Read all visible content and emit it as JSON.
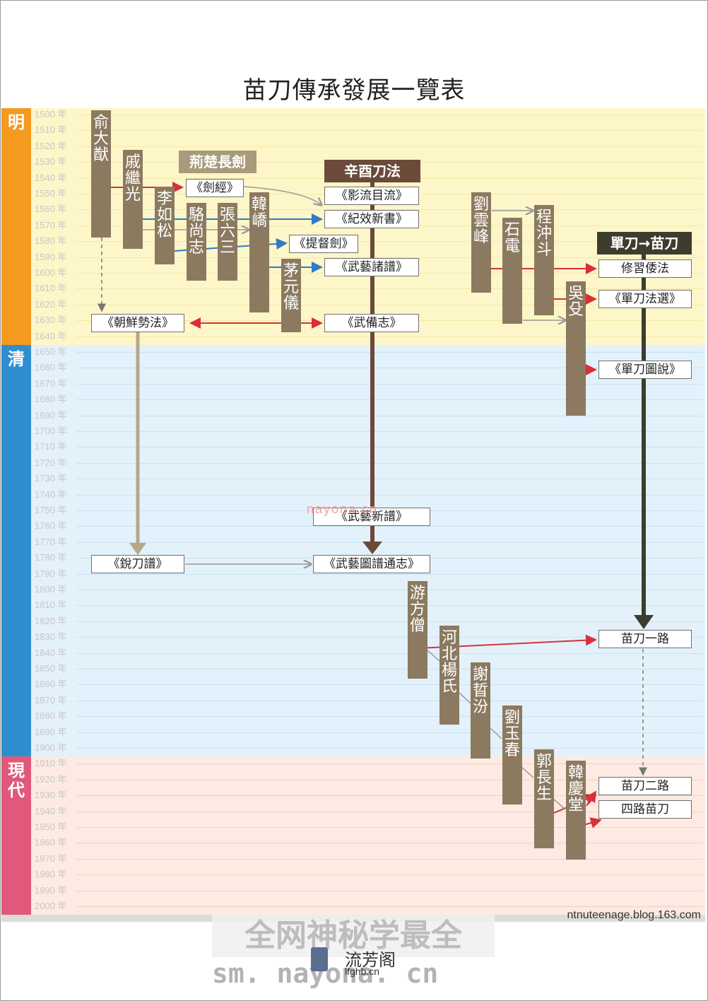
{
  "title": "苗刀傳承發展一覽表",
  "eras": [
    {
      "label": "明",
      "color": "#f39a1f",
      "band": "#fdf6c8"
    },
    {
      "label": "清",
      "color": "#2e8fd0",
      "band": "#e3f1fb"
    },
    {
      "label": "現代",
      "color": "#e2587a",
      "band": "#fdeae2"
    }
  ],
  "years": [
    "1500 年",
    "1510 年",
    "1520 年",
    "1530 年",
    "1540 年",
    "1550 年",
    "1560 年",
    "1570 年",
    "1580 年",
    "1590 年",
    "1600 年",
    "1610 年",
    "1620 年",
    "1630 年",
    "1640 年",
    "1650 年",
    "1660 年",
    "1670 年",
    "1680 年",
    "1690 年",
    "1700 年",
    "1710 年",
    "1720 年",
    "1730 年",
    "1740 年",
    "1750 年",
    "1760 年",
    "1770 年",
    "1780 年",
    "1790 年",
    "1800 年",
    "1810 年",
    "1820 年",
    "1830 年",
    "1840 年",
    "1850 年",
    "1860 年",
    "1870 年",
    "1880 年",
    "1890 年",
    "1900 年",
    "1910 年",
    "1920 年",
    "1930 年",
    "1940 年",
    "1950 年",
    "1960 年",
    "1970 年",
    "1980 年",
    "1990 年",
    "2000 年"
  ],
  "people": {
    "yu_dayou": "俞大猷",
    "qi_jiguang": "戚繼光",
    "li_rusong": "李如松",
    "luo_shangzhi": "駱尚志",
    "zhang_liusan": "張六三",
    "han_jiao": "韓嶠",
    "mao_yuanyi": "茅元儀",
    "liu_yunfeng": "劉雲峰",
    "shi_dian": "石電",
    "cheng_chongdou": "程沖斗",
    "wu_shu": "吳殳",
    "you_fangseng": "游方僧",
    "hebei_yang": "河北楊氏",
    "xie_zhenfen": "謝晢汾",
    "liu_yuchun": "劉玉春",
    "guo_changsheng": "郭長生",
    "han_qingtang": "韓慶堂"
  },
  "headers": {
    "jingchu": "荊楚長劍",
    "xinyou": "辛酉刀法",
    "dandao": "單刀→苗刀"
  },
  "docs": {
    "jianjing": "《劍經》",
    "yingliu": "《影流目流》",
    "jixiao": "《紀效新書》",
    "tiduanjian": "《提督劍》",
    "wuyi_zhupu": "《武藝諸譜》",
    "wubeizhi": "《武備志》",
    "chaoxian": "《朝鮮勢法》",
    "xiuxi": "修習倭法",
    "dandao_faxuan": "《單刀法選》",
    "dandao_tushuo": "《單刀圖說》",
    "wuyi_xinpu": "《武藝新譜》",
    "ruidaopu": "《銳刀譜》",
    "wuyi_tupu": "《武藝圖譜通志》",
    "miaodao_yi": "苗刀一路",
    "miaodao_er": "苗刀二路",
    "silu": "四路苗刀"
  },
  "source": "ntnuteenage.blog.163.com",
  "watermarks": {
    "main": "全网神秘学最全",
    "url": "sm. nayona. cn",
    "mid": "nayona.cn",
    "brand": "流芳阁",
    "brand_url": "lfghb.cn"
  },
  "colors": {
    "person": "#8b7a60",
    "header_dark": "#6b4a3a",
    "red": "#d8303a",
    "blue": "#2e7ac8",
    "tan": "#b5a888"
  }
}
